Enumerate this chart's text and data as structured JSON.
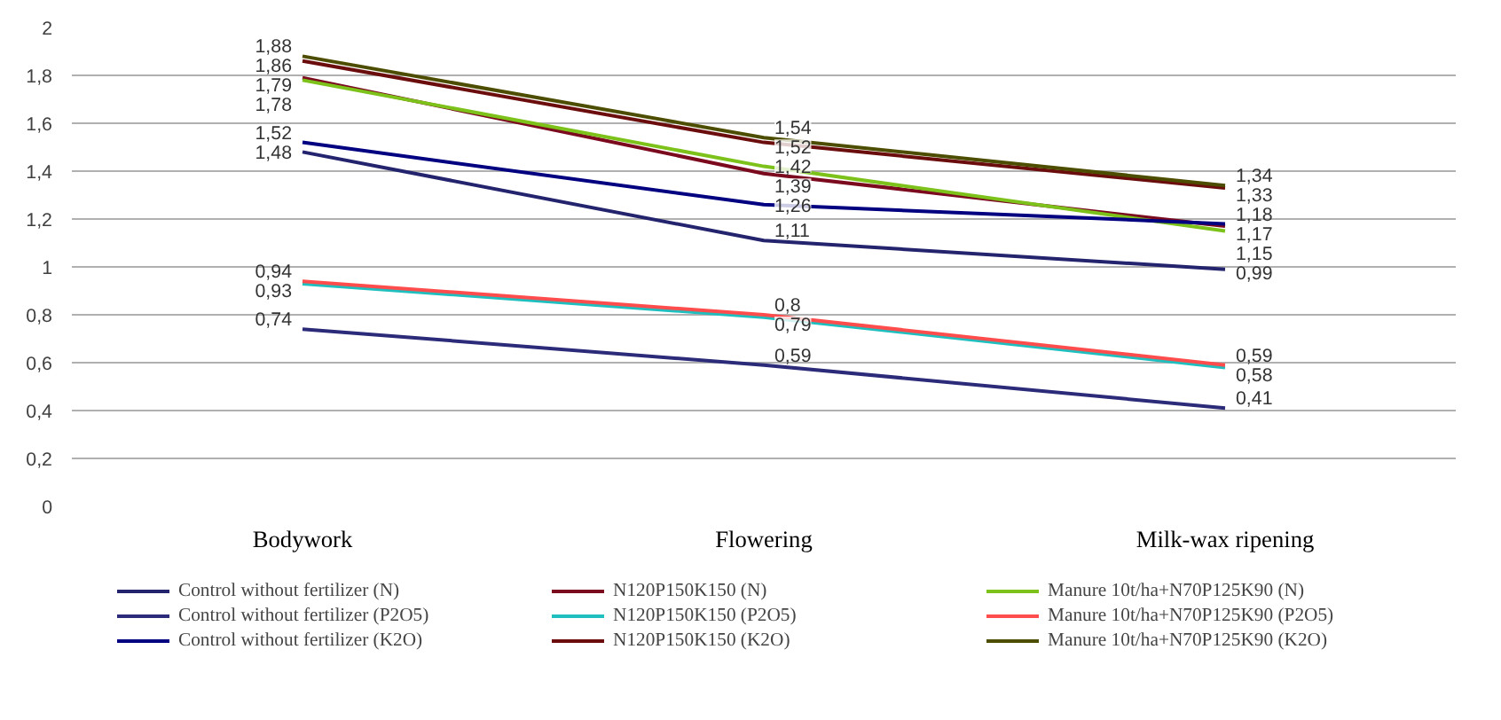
{
  "chart_data": {
    "type": "line",
    "categories": [
      "Bodywork",
      "Flowering",
      "Milk-wax ripening"
    ],
    "ylim": [
      0,
      2
    ],
    "yticks": [
      0,
      {
        "value": 0.2,
        "label": "0,2"
      },
      {
        "value": 0.4,
        "label": "0,4"
      },
      {
        "value": 0.6,
        "label": "0,6"
      },
      {
        "value": 0.8,
        "label": "0,8"
      },
      1,
      {
        "value": 1.2,
        "label": "1,2"
      },
      {
        "value": 1.4,
        "label": "1,4"
      },
      {
        "value": 1.6,
        "label": "1,6"
      },
      {
        "value": 1.8,
        "label": "1,8"
      },
      2
    ],
    "grid": "y",
    "legend": "bottom",
    "marker": "none",
    "line_style": "solid",
    "series": [
      {
        "name": "Control without fertilizer (N)",
        "color": "#23236e",
        "values": [
          1.48,
          1.11,
          0.99
        ],
        "value_labels": [
          "1,48",
          "1,11",
          "0,99"
        ]
      },
      {
        "name": "N120P150K150 (N)",
        "color": "#7b0a1e",
        "values": [
          1.79,
          1.39,
          1.17
        ],
        "value_labels": [
          "1,79",
          "1,39",
          "1,17"
        ]
      },
      {
        "name": "Manure 10t/ha+N70P125K90 (N)",
        "color": "#7cc21a",
        "values": [
          1.78,
          1.42,
          1.15
        ],
        "value_labels": [
          "1,78",
          "1,42",
          "1,15"
        ]
      },
      {
        "name": "Control without fertilizer (P2O5)",
        "color": "#2b2b7a",
        "values": [
          0.74,
          0.59,
          0.41
        ],
        "value_labels": [
          "0,74",
          "0,59",
          "0,41"
        ]
      },
      {
        "name": "N120P150K150 (P2O5)",
        "color": "#1fbfbf",
        "values": [
          0.93,
          0.79,
          0.58
        ],
        "value_labels": [
          "0,93",
          "0,79",
          "0,58"
        ]
      },
      {
        "name": "Manure 10t/ha+N70P125K90 (P2O5)",
        "color": "#ff4c4c",
        "values": [
          0.94,
          0.8,
          0.59
        ],
        "value_labels": [
          "0,94",
          "0,8",
          "0,59"
        ]
      },
      {
        "name": "Control without fertilizer (K2O)",
        "color": "#000080",
        "values": [
          1.52,
          1.26,
          1.18
        ],
        "value_labels": [
          "1,52",
          "1,26",
          "1,18"
        ]
      },
      {
        "name": "N120P150K150 (K2O)",
        "color": "#6b0d0d",
        "values": [
          1.86,
          1.52,
          1.33
        ],
        "value_labels": [
          "1,86",
          "1,52",
          "1,33"
        ]
      },
      {
        "name": "Manure 10t/ha+N70P125K90 (K2O)",
        "color": "#4d4d00",
        "values": [
          1.88,
          1.54,
          1.34
        ],
        "value_labels": [
          "1,88",
          "1,54",
          "1,34"
        ]
      }
    ]
  }
}
